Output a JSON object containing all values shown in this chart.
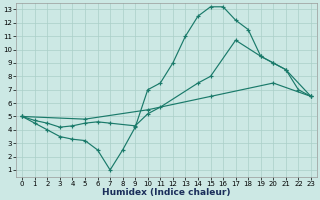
{
  "line1_x": [
    0,
    1,
    2,
    3,
    4,
    5,
    6,
    7,
    8,
    9,
    10,
    11,
    12,
    13,
    14,
    15,
    16,
    17,
    18,
    19,
    20,
    21,
    22,
    23
  ],
  "line1_y": [
    5.0,
    4.5,
    4.0,
    3.5,
    3.3,
    3.2,
    2.5,
    1.0,
    2.5,
    4.2,
    7.0,
    7.5,
    9.0,
    11.0,
    12.5,
    13.2,
    13.2,
    12.2,
    11.5,
    9.5,
    9.0,
    8.5,
    7.0,
    6.5
  ],
  "line2_x": [
    0,
    1,
    2,
    3,
    4,
    5,
    6,
    7,
    9,
    10,
    11,
    14,
    15,
    17,
    19,
    20,
    21,
    23
  ],
  "line2_y": [
    5.0,
    4.7,
    4.5,
    4.2,
    4.3,
    4.5,
    4.6,
    4.5,
    4.3,
    5.2,
    5.7,
    7.5,
    8.0,
    10.7,
    9.5,
    9.0,
    8.5,
    6.5
  ],
  "line3_x": [
    0,
    5,
    10,
    15,
    20,
    23
  ],
  "line3_y": [
    5.0,
    4.8,
    5.5,
    6.5,
    7.5,
    6.5
  ],
  "color": "#1a7a6a",
  "background": "#cce8e4",
  "grid_color": "#aacfc8",
  "xlabel": "Humidex (Indice chaleur)",
  "xlim": [
    -0.5,
    23.5
  ],
  "ylim": [
    0.5,
    13.5
  ],
  "xticks": [
    0,
    1,
    2,
    3,
    4,
    5,
    6,
    7,
    8,
    9,
    10,
    11,
    12,
    13,
    14,
    15,
    16,
    17,
    18,
    19,
    20,
    21,
    22,
    23
  ],
  "yticks": [
    1,
    2,
    3,
    4,
    5,
    6,
    7,
    8,
    9,
    10,
    11,
    12,
    13
  ],
  "tick_fontsize": 5.0,
  "xlabel_fontsize": 6.5
}
